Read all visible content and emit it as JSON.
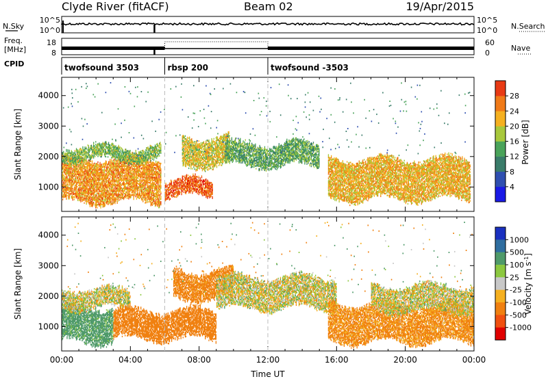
{
  "header": {
    "station": "Clyde River (fitACF)",
    "beam": "Beam 02",
    "date": "19/Apr/2015"
  },
  "summary_panels": {
    "nsky": {
      "label": "N.Sky",
      "tick_top": "10^5",
      "tick_bottom": "10^0",
      "right_label": "N.Search",
      "right_tick_top": "10^5",
      "right_tick_bottom": "10^0"
    },
    "freq": {
      "label_line1": "Freq.",
      "label_line2": "[MHz]",
      "tick_top": "18",
      "tick_bottom": "8",
      "right_label": "Nave",
      "right_tick_top": "60",
      "right_tick_bottom": "0"
    },
    "cpid": {
      "label": "CPID",
      "segments": [
        {
          "label": "twofsound 3503",
          "start_hour": 0,
          "end_hour": 6
        },
        {
          "label": "rbsp 200",
          "start_hour": 6,
          "end_hour": 12
        },
        {
          "label": "twofsound -3503",
          "start_hour": 12,
          "end_hour": 24
        }
      ]
    }
  },
  "chart_data": [
    {
      "type": "heatmap",
      "name": "power-panel",
      "ylabel": "Slant Range [km]",
      "ylim": [
        200,
        4600
      ],
      "yticks": [
        1000,
        2000,
        3000,
        4000
      ],
      "xlim": [
        0,
        24
      ],
      "colorbar": {
        "label": "Power [dB]",
        "ticks": [
          "4",
          "8",
          "12",
          "16",
          "20",
          "24",
          "28"
        ],
        "range": [
          0,
          32
        ]
      },
      "echo_bands": [
        {
          "start_hour": 0.0,
          "end_hour": 5.8,
          "range_min": 500,
          "range_max": 1900,
          "power_db": 22
        },
        {
          "start_hour": 0.0,
          "end_hour": 5.8,
          "range_min": 1900,
          "range_max": 2300,
          "power_db": 14
        },
        {
          "start_hour": 6.0,
          "end_hour": 8.8,
          "range_min": 700,
          "range_max": 1200,
          "power_db": 26
        },
        {
          "start_hour": 7.0,
          "end_hour": 9.8,
          "range_min": 1700,
          "range_max": 2600,
          "power_db": 18
        },
        {
          "start_hour": 9.5,
          "end_hour": 15.0,
          "range_min": 1700,
          "range_max": 2400,
          "power_db": 12
        },
        {
          "start_hour": 15.5,
          "end_hour": 23.8,
          "range_min": 600,
          "range_max": 1900,
          "power_db": 20
        }
      ]
    },
    {
      "type": "heatmap",
      "name": "velocity-panel",
      "ylabel": "Slant Range [km]",
      "xlabel": "Time UT",
      "ylim": [
        200,
        4600
      ],
      "yticks": [
        1000,
        2000,
        3000,
        4000
      ],
      "xlim": [
        0,
        24
      ],
      "xticks": [
        "00:00",
        "04:00",
        "08:00",
        "12:00",
        "16:00",
        "20:00",
        "00:00"
      ],
      "colorbar": {
        "label": "Velocity [m s^-1]",
        "ticks": [
          "1000",
          "500",
          "100",
          "25",
          "-25",
          "-100",
          "-500",
          "-1000"
        ]
      },
      "echo_bands": [
        {
          "start_hour": 0.0,
          "end_hour": 3.0,
          "range_min": 500,
          "range_max": 1600,
          "velocity": 200
        },
        {
          "start_hour": 0.0,
          "end_hour": 4.0,
          "range_min": 1600,
          "range_max": 2200,
          "velocity": 0
        },
        {
          "start_hour": 3.0,
          "end_hour": 9.0,
          "range_min": 600,
          "range_max": 1500,
          "velocity": -300
        },
        {
          "start_hour": 6.5,
          "end_hour": 10.0,
          "range_min": 1900,
          "range_max": 2800,
          "velocity": -200
        },
        {
          "start_hour": 9.0,
          "end_hour": 16.0,
          "range_min": 1600,
          "range_max": 2600,
          "velocity": 0
        },
        {
          "start_hour": 15.5,
          "end_hour": 24.0,
          "range_min": 500,
          "range_max": 1700,
          "velocity": -150
        },
        {
          "start_hour": 18.0,
          "end_hour": 24.0,
          "range_min": 1500,
          "range_max": 2300,
          "velocity": 0
        }
      ]
    }
  ]
}
